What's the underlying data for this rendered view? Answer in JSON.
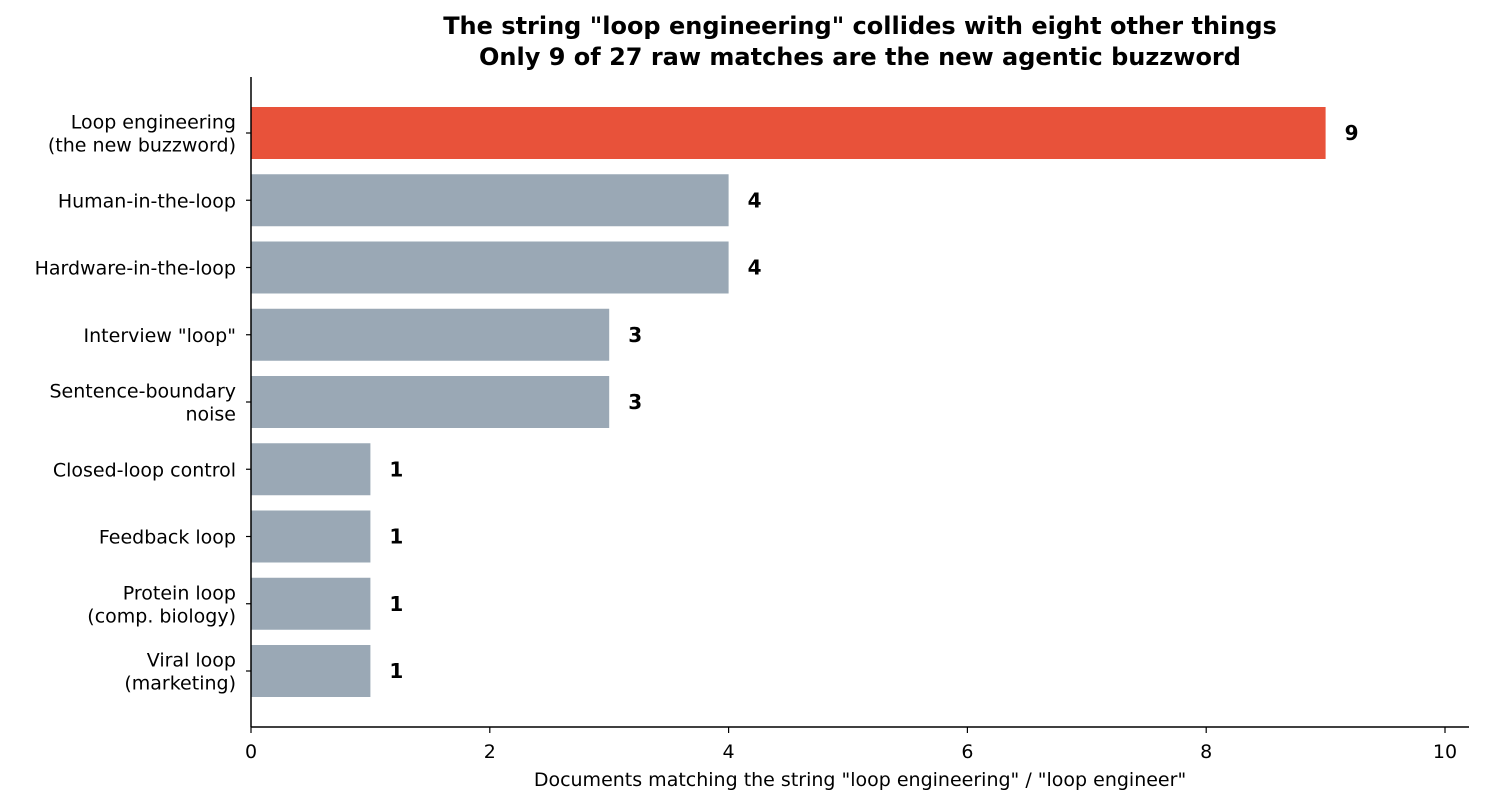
{
  "chart_data": {
    "type": "bar",
    "orientation": "horizontal",
    "title_lines": [
      "The string \"loop engineering\" collides with eight other things",
      "Only 9 of 27 raw matches are the new agentic buzzword"
    ],
    "xlabel": "Documents matching the string \"loop engineering\" / \"loop engineer\"",
    "ylabel": "",
    "xlim": [
      0,
      10
    ],
    "xticks": [
      0,
      2,
      4,
      6,
      8,
      10
    ],
    "grid": false,
    "categories": [
      {
        "lines": [
          "Loop engineering",
          "(the new buzzword)"
        ],
        "value": 9,
        "highlight": true
      },
      {
        "lines": [
          "Human-in-the-loop"
        ],
        "value": 4,
        "highlight": false
      },
      {
        "lines": [
          "Hardware-in-the-loop"
        ],
        "value": 4,
        "highlight": false
      },
      {
        "lines": [
          "Interview \"loop\""
        ],
        "value": 3,
        "highlight": false
      },
      {
        "lines": [
          "Sentence-boundary",
          "noise"
        ],
        "value": 3,
        "highlight": false
      },
      {
        "lines": [
          "Closed-loop control"
        ],
        "value": 1,
        "highlight": false
      },
      {
        "lines": [
          "Feedback loop"
        ],
        "value": 1,
        "highlight": false
      },
      {
        "lines": [
          "Protein loop",
          "(comp. biology)"
        ],
        "value": 1,
        "highlight": false
      },
      {
        "lines": [
          "Viral loop",
          "(marketing)"
        ],
        "value": 1,
        "highlight": false
      }
    ],
    "colors": {
      "highlight": "#e8523a",
      "default": "#9aa8b5"
    }
  }
}
